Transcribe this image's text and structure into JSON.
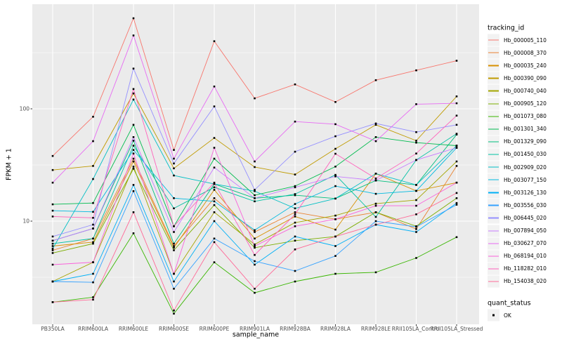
{
  "figure": {
    "y_axis": {
      "title": "FPKM + 1"
    },
    "x_axis": {
      "title": "sample_name"
    },
    "legend": {
      "tracking_title": "tracking_id",
      "quant_title": "quant_status",
      "quant_items": [
        {
          "label": "OK",
          "marker": "black-square"
        }
      ]
    },
    "colors": {
      "panel_bg": "#EBEBEB",
      "grid": "#FFFFFF",
      "point": "#000000",
      "tick_text": "#4D4D4D",
      "legend_key_bg": "#F2F2F2"
    }
  },
  "chart_data": {
    "type": "line",
    "title": "",
    "xlabel": "sample_name",
    "ylabel": "FPKM + 1",
    "y_scale": "log10",
    "ylim": [
      1.2,
      900
    ],
    "y_major_ticks": [
      {
        "label": "100",
        "value": 100
      },
      {
        "label": "10",
        "value": 10
      }
    ],
    "y_minor_gridlines": [
      3.162,
      31.62,
      316.2
    ],
    "grid": true,
    "legend_position": "right",
    "point_marker": "black-square",
    "categories": [
      "PB350LA",
      "RRIM600LA",
      "RRIM600LE",
      "RRIM600SE",
      "RRIM600PE",
      "RRIM901LA",
      "RRIM928BA",
      "RRIM928LA",
      "RRIM928LE",
      "RRII105LA_Control",
      "RRII105LA_Stressed"
    ],
    "series": [
      {
        "name": "Hb_000005_110",
        "color": "#F8766D",
        "values": [
          38,
          85,
          640,
          43,
          400,
          124,
          165,
          115,
          180,
          220,
          268
        ]
      },
      {
        "name": "Hb_000008_370",
        "color": "#EA8331",
        "values": [
          5.5,
          7,
          36,
          6.0,
          16,
          8,
          12,
          10.4,
          12,
          8.5,
          31
        ]
      },
      {
        "name": "Hb_000035_240",
        "color": "#D89000",
        "values": [
          6.0,
          6.5,
          34,
          5.8,
          19,
          7,
          11,
          8.4,
          26.5,
          18.6,
          22
        ]
      },
      {
        "name": "Hb_000390_090",
        "color": "#C09B00",
        "values": [
          28.5,
          31,
          137,
          29.5,
          55,
          30.3,
          26,
          44,
          72,
          52,
          129
        ]
      },
      {
        "name": "Hb_000740_040",
        "color": "#A3A500",
        "values": [
          2.9,
          4.3,
          30.6,
          3.4,
          12,
          6.2,
          9.7,
          11.2,
          14.3,
          15.4,
          34
        ]
      },
      {
        "name": "Hb_000905_120",
        "color": "#7CAE00",
        "values": [
          5.2,
          6.3,
          29.3,
          5.5,
          13.9,
          5.8,
          6.7,
          7.3,
          12,
          9.0,
          16
        ]
      },
      {
        "name": "Hb_001073_080",
        "color": "#39B600",
        "values": [
          1.9,
          2.1,
          7.8,
          1.5,
          4.3,
          2.3,
          2.9,
          3.4,
          3.5,
          4.7,
          7.2
        ]
      },
      {
        "name": "Hb_001301_340",
        "color": "#00BB4E",
        "values": [
          14.1,
          14.5,
          72,
          9.0,
          36,
          17,
          20.5,
          30.6,
          56,
          50,
          47
        ]
      },
      {
        "name": "Hb_001329_090",
        "color": "#00BF7D",
        "values": [
          6.7,
          8.6,
          52,
          6.3,
          21.4,
          16,
          17,
          15.9,
          23,
          21,
          59
        ]
      },
      {
        "name": "Hb_001450_030",
        "color": "#00C1A3",
        "values": [
          6.3,
          7.0,
          47,
          13,
          20,
          15,
          17.4,
          25.8,
          10.9,
          35,
          60
        ]
      },
      {
        "name": "Hb_002909_020",
        "color": "#00BFC4",
        "values": [
          5.7,
          23.7,
          121,
          25.5,
          21.4,
          18.5,
          13,
          15.9,
          26.5,
          21,
          47
        ]
      },
      {
        "name": "Hb_003077_150",
        "color": "#00BAE0",
        "values": [
          12.4,
          12.1,
          43,
          16,
          15,
          8.3,
          14.2,
          20.5,
          17.5,
          18.6,
          45
        ]
      },
      {
        "name": "Hb_003126_130",
        "color": "#00B0F6",
        "values": [
          2.9,
          3.4,
          21,
          2.9,
          10,
          4.1,
          7.3,
          6.0,
          9.3,
          8.0,
          14.5
        ]
      },
      {
        "name": "Hb_003556_030",
        "color": "#35A2FF",
        "values": [
          2.9,
          2.85,
          18.5,
          2.5,
          7,
          4.4,
          3.6,
          4.9,
          10,
          8.9,
          14
        ]
      },
      {
        "name": "Hb_006445_020",
        "color": "#9590FF",
        "values": [
          7.3,
          9.3,
          228,
          32.6,
          105,
          19,
          41.5,
          57,
          74,
          62,
          72
        ]
      },
      {
        "name": "Hb_007894_050",
        "color": "#C77CFF",
        "values": [
          6.7,
          8.6,
          56,
          8.0,
          30,
          16,
          20,
          25,
          23,
          35,
          45
        ]
      },
      {
        "name": "Hb_030627_070",
        "color": "#E76BF3",
        "values": [
          22,
          51.5,
          450,
          36,
          158,
          34,
          77,
          73,
          51.5,
          110,
          112
        ]
      },
      {
        "name": "Hb_068194_010",
        "color": "#FA62DB",
        "values": [
          4.1,
          4.3,
          40,
          3.4,
          45,
          6,
          9,
          10.4,
          13.7,
          13.7,
          22
        ]
      },
      {
        "name": "Hb_118282_010",
        "color": "#FF62BC",
        "values": [
          11,
          10.7,
          150,
          9.0,
          22,
          5,
          11.5,
          39.8,
          24,
          40,
          87
        ]
      },
      {
        "name": "Hb_154038_020",
        "color": "#FF6A98",
        "values": [
          1.9,
          2.0,
          12,
          1.6,
          6.5,
          2.5,
          5.6,
          7.3,
          9.3,
          11.5,
          17.8
        ]
      }
    ],
    "quant_status": {
      "label": "OK",
      "marker": "black-square"
    }
  }
}
